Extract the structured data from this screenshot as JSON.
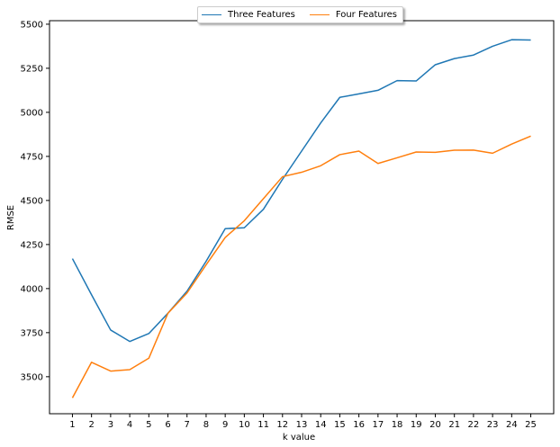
{
  "chart_data": {
    "type": "line",
    "title": "",
    "xlabel": "k value",
    "ylabel": "RMSE",
    "x": [
      1,
      2,
      3,
      4,
      5,
      6,
      7,
      8,
      9,
      10,
      11,
      12,
      13,
      14,
      15,
      16,
      17,
      18,
      19,
      20,
      21,
      22,
      23,
      24,
      25
    ],
    "xlim": [
      -0.2,
      26.2
    ],
    "ylim": [
      3290,
      5520
    ],
    "yticks": [
      3500,
      3750,
      4000,
      4250,
      4500,
      4750,
      5000,
      5250,
      5500
    ],
    "grid": false,
    "legend_position": "top-center",
    "series": [
      {
        "name": "Three Features",
        "color": "#1f77b4",
        "values": [
          4170,
          3965,
          3765,
          3700,
          3745,
          3860,
          3985,
          4155,
          4340,
          4345,
          4450,
          4620,
          4780,
          4940,
          5085,
          5105,
          5125,
          5180,
          5178,
          5270,
          5305,
          5325,
          5375,
          5412,
          5410
        ]
      },
      {
        "name": "Four Features",
        "color": "#ff7f0e",
        "values": [
          3380,
          3582,
          3532,
          3540,
          3605,
          3860,
          3975,
          4135,
          4290,
          4385,
          4510,
          4635,
          4660,
          4697,
          4760,
          4780,
          4710,
          4742,
          4775,
          4773,
          4785,
          4786,
          4768,
          4820,
          4865
        ]
      }
    ]
  }
}
